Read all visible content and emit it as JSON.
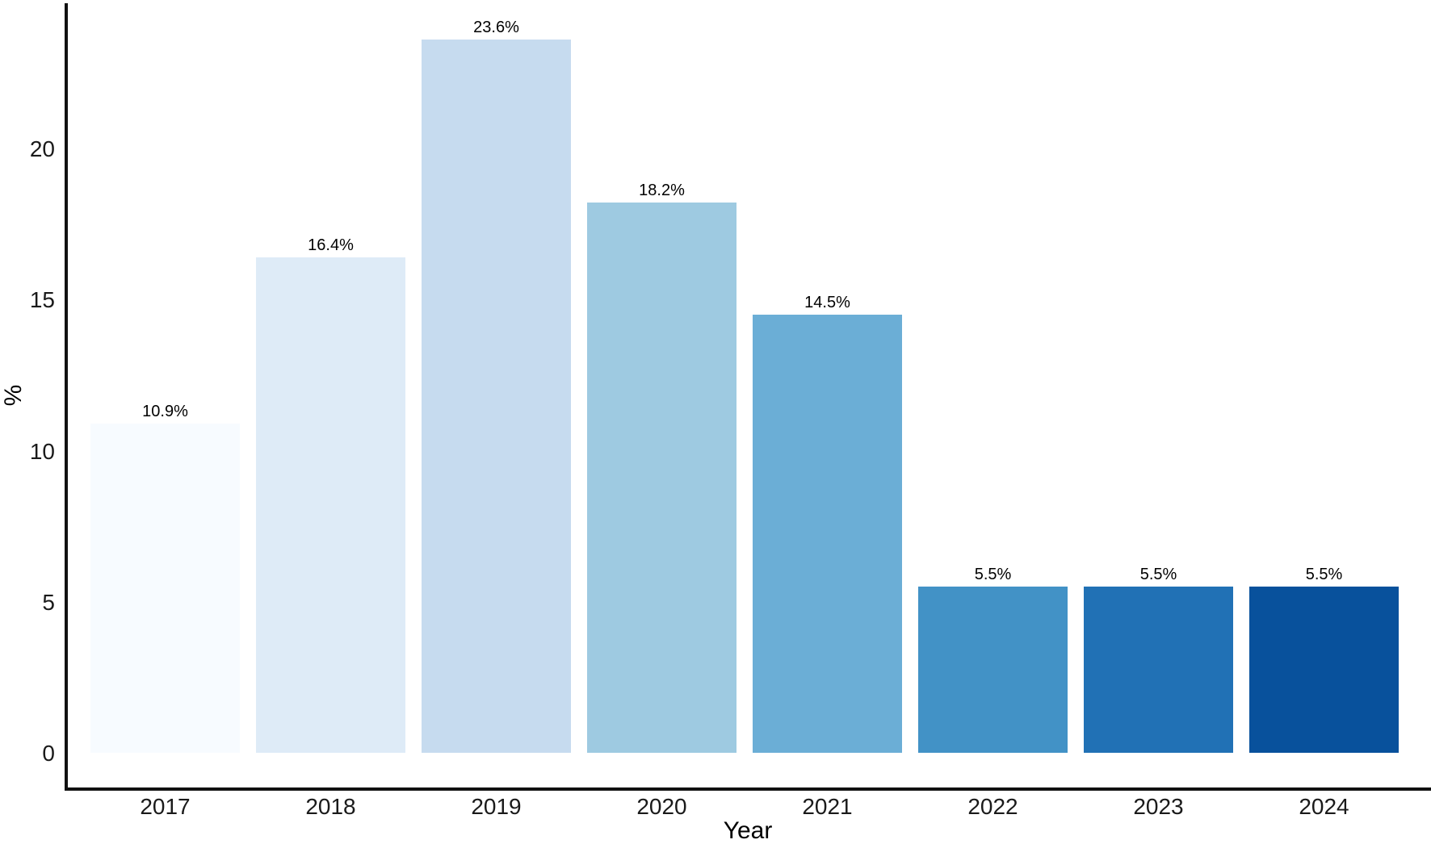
{
  "chart_data": {
    "type": "bar",
    "title": "",
    "xlabel": "Year",
    "ylabel": "%",
    "categories": [
      "2017",
      "2018",
      "2019",
      "2020",
      "2021",
      "2022",
      "2023",
      "2024"
    ],
    "values": [
      10.9,
      16.4,
      23.6,
      18.2,
      14.5,
      5.5,
      5.5,
      5.5
    ],
    "bar_labels": [
      "10.9%",
      "16.4%",
      "23.6%",
      "18.2%",
      "14.5%",
      "5.5%",
      "5.5%",
      "5.5%"
    ],
    "bar_colors": [
      "#f7fbff",
      "#deebf7",
      "#c6dbef",
      "#9ecae1",
      "#6baed6",
      "#4292c6",
      "#2171b5",
      "#08519c"
    ],
    "y_ticks": [
      "0",
      "5",
      "10",
      "15",
      "20"
    ],
    "y_tick_values": [
      0,
      5,
      10,
      15,
      20
    ],
    "ylim": [
      0,
      25
    ],
    "grid": false,
    "legend": "none",
    "axis_color": "#111111",
    "tick_text_color": "#1a1a1a",
    "background": "#ffffff"
  }
}
